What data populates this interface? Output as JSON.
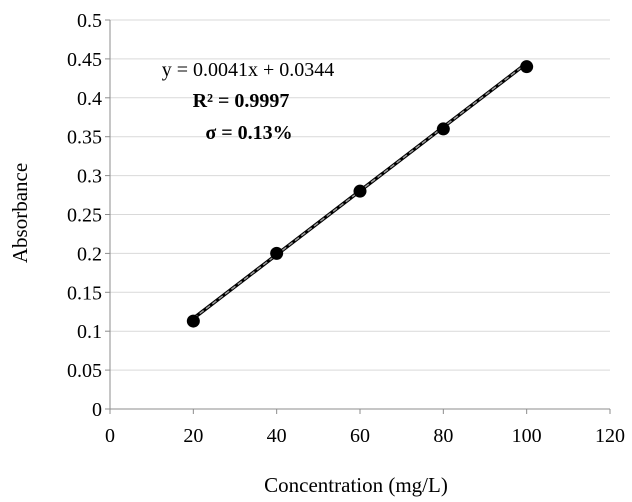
{
  "chart_data": {
    "type": "scatter",
    "title": "",
    "xlabel": "Concentration (mg/L)",
    "ylabel": "Absorbance",
    "xlim": [
      0,
      120
    ],
    "ylim": [
      0,
      0.5
    ],
    "xticks": [
      0,
      20,
      40,
      60,
      80,
      100,
      120
    ],
    "yticks": [
      0,
      0.05,
      0.1,
      0.15,
      0.2,
      0.25,
      0.3,
      0.35,
      0.4,
      0.45,
      0.5
    ],
    "xtick_labels": [
      "0",
      "20",
      "40",
      "60",
      "80",
      "100",
      "120"
    ],
    "ytick_labels": [
      "0",
      "0.05",
      "0.1",
      "0.15",
      "0.2",
      "0.25",
      "0.3",
      "0.35",
      "0.4",
      "0.45",
      "0.5"
    ],
    "grid": "horizontal",
    "series": [
      {
        "name": "Absorbance",
        "x": [
          20,
          40,
          60,
          80,
          100
        ],
        "y": [
          0.113,
          0.2,
          0.28,
          0.36,
          0.44
        ]
      }
    ],
    "trendline": {
      "slope": 0.0041,
      "intercept": 0.0344,
      "x_range": [
        20,
        100
      ]
    },
    "annotations": {
      "equation": "y = 0.0041x + 0.0344",
      "r_squared": "R² = 0.9997",
      "sigma": "σ = 0.13%"
    },
    "colors": {
      "marker": "#000000",
      "trendline": "#000000",
      "trendline_dash": "#9a9a9a",
      "grid": "#d9d9d9",
      "axis": "#8c8c8c"
    }
  }
}
